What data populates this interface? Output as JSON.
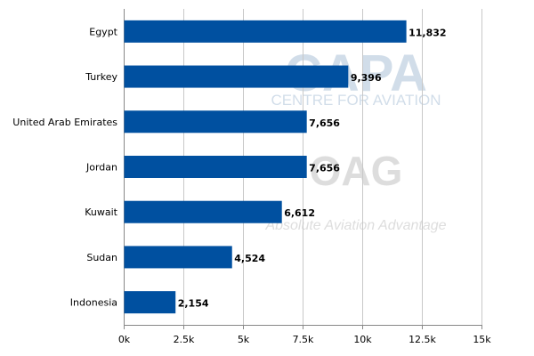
{
  "chart_data": {
    "type": "bar",
    "orientation": "horizontal",
    "categories": [
      "Egypt",
      "Turkey",
      "United Arab Emirates",
      "Jordan",
      "Kuwait",
      "Sudan",
      "Indonesia"
    ],
    "values": [
      11832,
      9396,
      7656,
      7656,
      6612,
      4524,
      2154
    ],
    "data_labels": [
      "11,832",
      "9,396",
      "7,656",
      "7,656",
      "6,612",
      "4,524",
      "2,154"
    ],
    "xlim": [
      0,
      15000
    ],
    "xticks": [
      0,
      2500,
      5000,
      7500,
      10000,
      12500,
      15000
    ],
    "xtick_labels": [
      "0k",
      "2.5k",
      "5k",
      "7.5k",
      "10k",
      "12.5k",
      "15k"
    ],
    "title": "",
    "xlabel": "",
    "ylabel": "",
    "grid": "vertical",
    "legend": "none",
    "bar_color": "#0050a0"
  },
  "watermark": {
    "capa_logo": "CAPA",
    "capa_tagline": "CENTRE FOR AVIATION",
    "oag_logo": "OAG",
    "oag_tagline": "Absolute Aviation Advantage"
  },
  "colors": {
    "grid": "#c8c8c8",
    "axis": "#888888",
    "watermark": "#b4c8dc",
    "watermark_gray": "#c8c8c8"
  }
}
